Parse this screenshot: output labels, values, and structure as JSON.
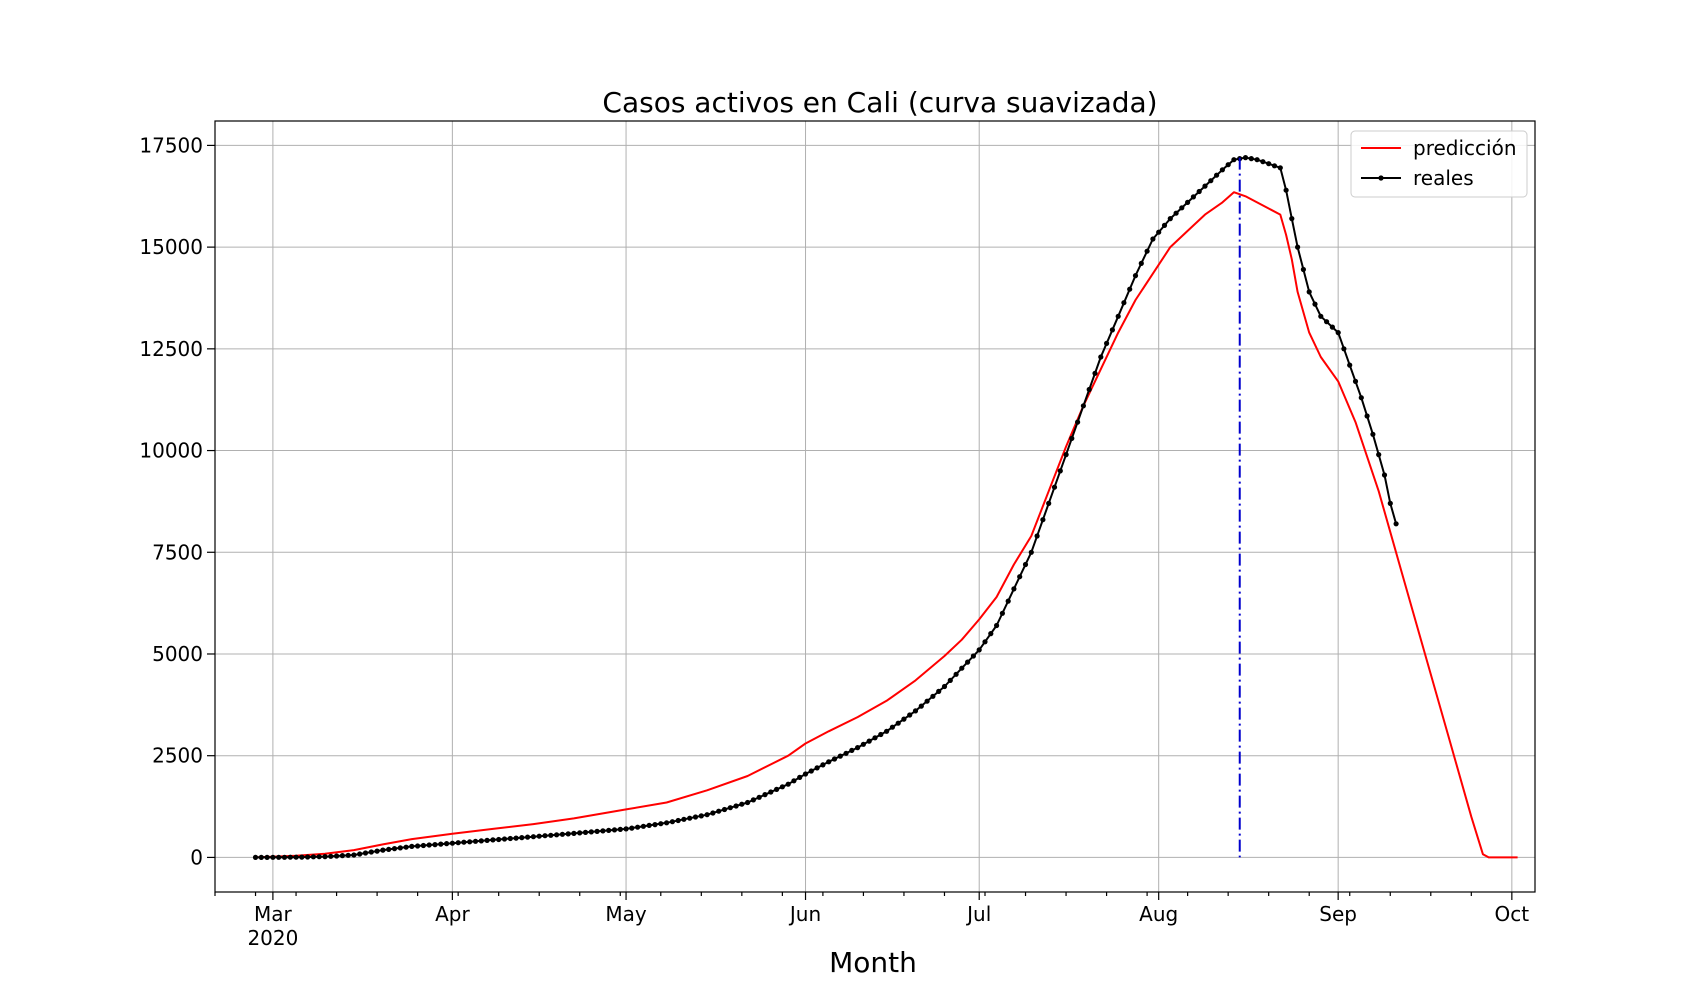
{
  "chart_data": {
    "type": "line",
    "title": "Casos activos en Cali (curva suavizada)",
    "xlabel": "Month",
    "ylabel": "",
    "x_axis": {
      "kind": "date",
      "range": [
        "2020-02-20",
        "2020-10-05"
      ],
      "ticks": [
        {
          "date": "2020-03-01",
          "label": "Mar",
          "sublabel": "2020"
        },
        {
          "date": "2020-04-01",
          "label": "Apr"
        },
        {
          "date": "2020-05-01",
          "label": "May"
        },
        {
          "date": "2020-06-01",
          "label": "Jun"
        },
        {
          "date": "2020-07-01",
          "label": "Jul"
        },
        {
          "date": "2020-08-01",
          "label": "Aug"
        },
        {
          "date": "2020-09-01",
          "label": "Sep"
        },
        {
          "date": "2020-10-01",
          "label": "Oct"
        }
      ]
    },
    "y_axis": {
      "range": [
        -850,
        18100
      ],
      "ticks": [
        0,
        2500,
        5000,
        7500,
        10000,
        12500,
        15000,
        17500
      ]
    },
    "grid": true,
    "legend": {
      "position": "top-right"
    },
    "vline": {
      "date": "2020-08-15",
      "color": "#0000cc",
      "style": "dashdot"
    },
    "series": [
      {
        "name": "predicción",
        "color": "#ff0000",
        "marker": false,
        "points": [
          [
            "2020-02-27",
            0
          ],
          [
            "2020-03-05",
            40
          ],
          [
            "2020-03-10",
            90
          ],
          [
            "2020-03-15",
            180
          ],
          [
            "2020-03-20",
            320
          ],
          [
            "2020-03-25",
            450
          ],
          [
            "2020-04-01",
            580
          ],
          [
            "2020-04-08",
            700
          ],
          [
            "2020-04-15",
            820
          ],
          [
            "2020-04-22",
            960
          ],
          [
            "2020-05-01",
            1180
          ],
          [
            "2020-05-08",
            1350
          ],
          [
            "2020-05-15",
            1650
          ],
          [
            "2020-05-22",
            2000
          ],
          [
            "2020-05-29",
            2500
          ],
          [
            "2020-06-01",
            2800
          ],
          [
            "2020-06-05",
            3100
          ],
          [
            "2020-06-10",
            3450
          ],
          [
            "2020-06-15",
            3850
          ],
          [
            "2020-06-20",
            4350
          ],
          [
            "2020-06-25",
            4950
          ],
          [
            "2020-06-28",
            5350
          ],
          [
            "2020-07-01",
            5850
          ],
          [
            "2020-07-04",
            6400
          ],
          [
            "2020-07-07",
            7200
          ],
          [
            "2020-07-10",
            7900
          ],
          [
            "2020-07-13",
            9000
          ],
          [
            "2020-07-16",
            10100
          ],
          [
            "2020-07-19",
            11100
          ],
          [
            "2020-07-22",
            12000
          ],
          [
            "2020-07-25",
            12900
          ],
          [
            "2020-07-28",
            13700
          ],
          [
            "2020-07-31",
            14350
          ],
          [
            "2020-08-03",
            15000
          ],
          [
            "2020-08-06",
            15400
          ],
          [
            "2020-08-09",
            15800
          ],
          [
            "2020-08-12",
            16100
          ],
          [
            "2020-08-14",
            16350
          ],
          [
            "2020-08-16",
            16250
          ],
          [
            "2020-08-18",
            16100
          ],
          [
            "2020-08-20",
            15950
          ],
          [
            "2020-08-22",
            15800
          ],
          [
            "2020-08-23",
            15300
          ],
          [
            "2020-08-24",
            14700
          ],
          [
            "2020-08-25",
            13900
          ],
          [
            "2020-08-27",
            12900
          ],
          [
            "2020-08-29",
            12300
          ],
          [
            "2020-09-01",
            11700
          ],
          [
            "2020-09-04",
            10700
          ],
          [
            "2020-09-08",
            9000
          ],
          [
            "2020-09-12",
            7000
          ],
          [
            "2020-09-16",
            5000
          ],
          [
            "2020-09-20",
            3000
          ],
          [
            "2020-09-24",
            1000
          ],
          [
            "2020-09-26",
            80
          ],
          [
            "2020-09-27",
            0
          ],
          [
            "2020-10-01",
            0
          ],
          [
            "2020-10-02",
            0
          ]
        ]
      },
      {
        "name": "reales",
        "color": "#000000",
        "marker": true,
        "points": [
          [
            "2020-02-27",
            0
          ],
          [
            "2020-03-05",
            5
          ],
          [
            "2020-03-10",
            20
          ],
          [
            "2020-03-15",
            60
          ],
          [
            "2020-03-20",
            180
          ],
          [
            "2020-03-25",
            270
          ],
          [
            "2020-04-01",
            350
          ],
          [
            "2020-04-08",
            430
          ],
          [
            "2020-04-15",
            510
          ],
          [
            "2020-04-22",
            590
          ],
          [
            "2020-05-01",
            700
          ],
          [
            "2020-05-08",
            850
          ],
          [
            "2020-05-15",
            1050
          ],
          [
            "2020-05-22",
            1350
          ],
          [
            "2020-05-29",
            1800
          ],
          [
            "2020-06-01",
            2050
          ],
          [
            "2020-06-05",
            2350
          ],
          [
            "2020-06-10",
            2700
          ],
          [
            "2020-06-15",
            3100
          ],
          [
            "2020-06-20",
            3600
          ],
          [
            "2020-06-25",
            4200
          ],
          [
            "2020-06-28",
            4650
          ],
          [
            "2020-07-01",
            5100
          ],
          [
            "2020-07-04",
            5700
          ],
          [
            "2020-07-07",
            6600
          ],
          [
            "2020-07-10",
            7500
          ],
          [
            "2020-07-13",
            8700
          ],
          [
            "2020-07-16",
            9900
          ],
          [
            "2020-07-19",
            11100
          ],
          [
            "2020-07-22",
            12300
          ],
          [
            "2020-07-25",
            13300
          ],
          [
            "2020-07-28",
            14300
          ],
          [
            "2020-07-31",
            15200
          ],
          [
            "2020-08-03",
            15700
          ],
          [
            "2020-08-06",
            16100
          ],
          [
            "2020-08-09",
            16500
          ],
          [
            "2020-08-12",
            16900
          ],
          [
            "2020-08-14",
            17150
          ],
          [
            "2020-08-16",
            17200
          ],
          [
            "2020-08-18",
            17150
          ],
          [
            "2020-08-20",
            17050
          ],
          [
            "2020-08-22",
            16950
          ],
          [
            "2020-08-23",
            16400
          ],
          [
            "2020-08-24",
            15700
          ],
          [
            "2020-08-25",
            15000
          ],
          [
            "2020-08-27",
            13900
          ],
          [
            "2020-08-29",
            13300
          ],
          [
            "2020-09-01",
            12900
          ],
          [
            "2020-09-03",
            12100
          ],
          [
            "2020-09-05",
            11300
          ],
          [
            "2020-09-07",
            10400
          ],
          [
            "2020-09-09",
            9400
          ],
          [
            "2020-09-10",
            8700
          ],
          [
            "2020-09-11",
            8200
          ]
        ]
      }
    ]
  }
}
